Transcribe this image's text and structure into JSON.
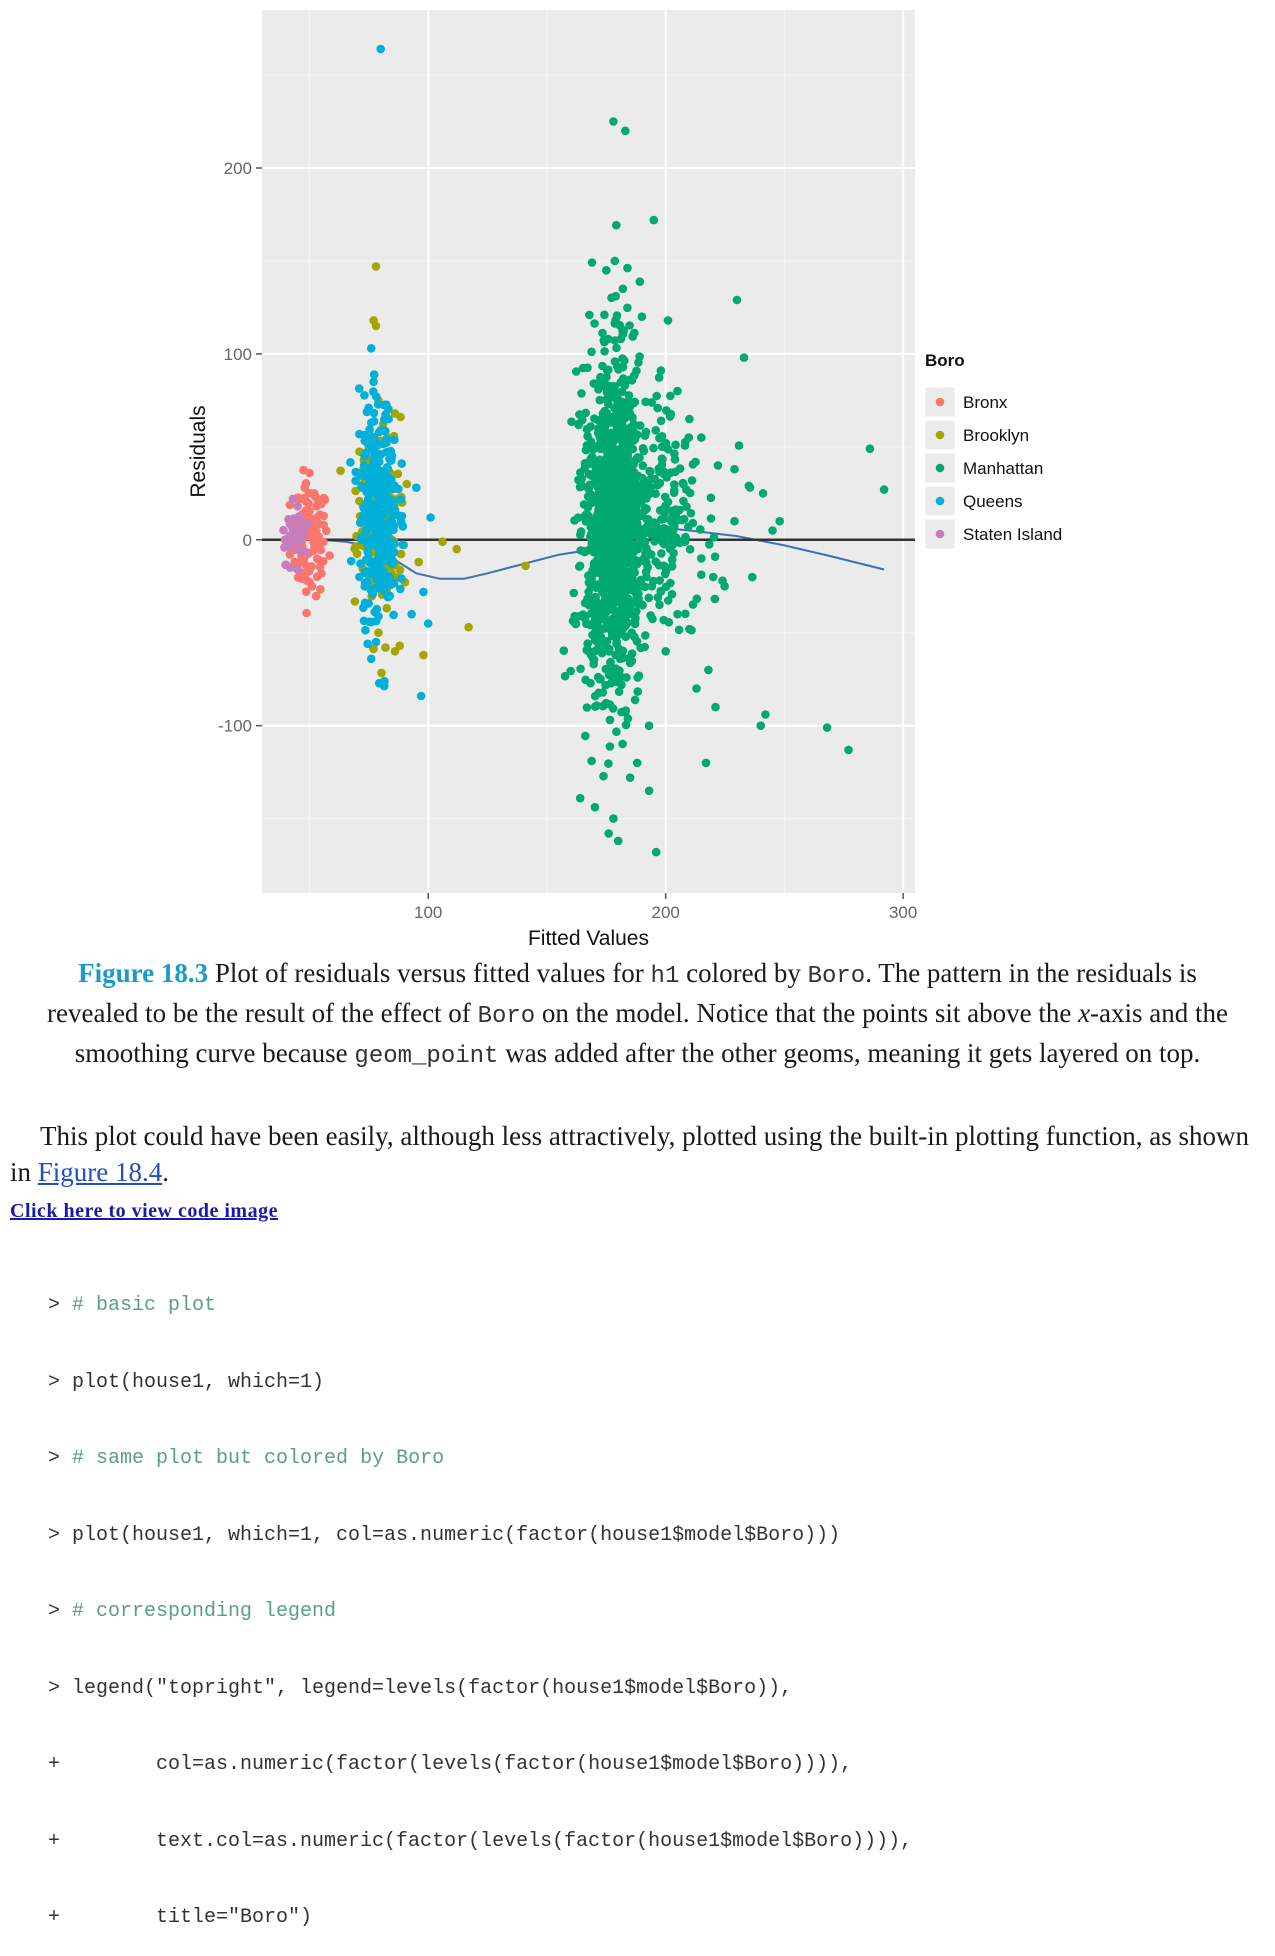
{
  "chart_data": {
    "type": "scatter",
    "xlabel": "Fitted Values",
    "ylabel": "Residuals",
    "xlim": [
      30,
      305
    ],
    "ylim": [
      -190,
      285
    ],
    "xticks": [
      100,
      200,
      300
    ],
    "yticks": [
      -100,
      0,
      100,
      200
    ],
    "xtick_labels": [
      "100",
      "200",
      "300"
    ],
    "ytick_labels": [
      "-100",
      "0",
      "100",
      "200"
    ],
    "grid": true,
    "background": "#ebebeb",
    "legend": {
      "title": "Boro",
      "placement": "right",
      "entries": [
        "Bronx",
        "Brooklyn",
        "Manhattan",
        "Queens",
        "Staten Island"
      ]
    },
    "colors": {
      "Bronx": "#f8766d",
      "Brooklyn": "#a3a500",
      "Manhattan": "#00a96f",
      "Queens": "#00b0d8",
      "Staten Island": "#c77cbb",
      "smooth": "#3f6fb5",
      "hline": "#333333"
    },
    "hline_y": 0,
    "smooth": {
      "x": [
        40,
        55,
        65,
        75,
        85,
        95,
        105,
        115,
        125,
        140,
        155,
        170,
        180,
        195,
        210,
        230,
        250,
        270,
        292
      ],
      "y": [
        2,
        0,
        -1,
        -3,
        -10,
        -18,
        -21,
        -21,
        -18,
        -13,
        -8,
        -5,
        0,
        7,
        5,
        2,
        -3,
        -9,
        -16
      ]
    },
    "series": [
      {
        "name": "Bronx",
        "center": [
          50,
          0
        ],
        "spread": [
          4,
          15
        ],
        "n": 90,
        "points": [
          [
            50,
            36
          ],
          [
            48,
            28
          ],
          [
            52,
            25
          ],
          [
            53,
            18
          ],
          [
            46,
            22
          ],
          [
            51,
            -25
          ],
          [
            55,
            -18
          ],
          [
            49,
            -22
          ],
          [
            56,
            8
          ],
          [
            44,
            -15
          ],
          [
            53,
            12
          ]
        ]
      },
      {
        "name": "Brooklyn",
        "center": [
          80,
          5
        ],
        "spread": [
          5,
          35
        ],
        "n": 140,
        "points": [
          [
            78,
            147
          ],
          [
            77,
            118
          ],
          [
            78,
            115
          ],
          [
            79,
            75
          ],
          [
            86,
            68
          ],
          [
            81,
            62
          ],
          [
            84,
            36
          ],
          [
            91,
            30
          ],
          [
            96,
            -12
          ],
          [
            106,
            -1
          ],
          [
            112,
            -5
          ],
          [
            117,
            -47
          ],
          [
            141,
            -14
          ],
          [
            86,
            -60
          ],
          [
            82,
            -58
          ],
          [
            88,
            -57
          ],
          [
            79,
            -50
          ],
          [
            98,
            -62
          ],
          [
            72,
            28
          ],
          [
            75,
            50
          ],
          [
            89,
            20
          ]
        ]
      },
      {
        "name": "Manhattan",
        "center": [
          177,
          8
        ],
        "spread": [
          6,
          45
        ],
        "n": 1400,
        "points": [
          [
            178,
            225
          ],
          [
            183,
            220
          ],
          [
            195,
            172
          ],
          [
            175,
            145
          ],
          [
            182,
            135
          ],
          [
            190,
            120
          ],
          [
            201,
            118
          ],
          [
            230,
            129
          ],
          [
            233,
            98
          ],
          [
            198,
            91
          ],
          [
            205,
            80
          ],
          [
            210,
            65
          ],
          [
            215,
            55
          ],
          [
            222,
            40
          ],
          [
            229,
            38
          ],
          [
            235,
            29
          ],
          [
            241,
            25
          ],
          [
            248,
            10
          ],
          [
            245,
            5
          ],
          [
            229,
            10
          ],
          [
            286,
            49
          ],
          [
            292,
            27
          ],
          [
            268,
            -101
          ],
          [
            277,
            -113
          ],
          [
            242,
            -94
          ],
          [
            240,
            -100
          ],
          [
            218,
            -70
          ],
          [
            213,
            -80
          ],
          [
            221,
            -90
          ],
          [
            217,
            -120
          ],
          [
            196,
            -168
          ],
          [
            176,
            -158
          ],
          [
            180,
            -162
          ],
          [
            178,
            -150
          ],
          [
            164,
            -139
          ],
          [
            188,
            -120
          ],
          [
            193,
            -100
          ],
          [
            210,
            -48
          ],
          [
            200,
            -60
          ],
          [
            205,
            -40
          ],
          [
            220,
            -20
          ],
          [
            215,
            -10
          ],
          [
            193,
            -135
          ],
          [
            185,
            -128
          ]
        ]
      },
      {
        "name": "Queens",
        "center": [
          79,
          15
        ],
        "spread": [
          4,
          30
        ],
        "n": 320,
        "points": [
          [
            80,
            264
          ],
          [
            76,
            103
          ],
          [
            77,
            85
          ],
          [
            73,
            40
          ],
          [
            95,
            28
          ],
          [
            101,
            12
          ],
          [
            98,
            -28
          ],
          [
            100,
            -45
          ],
          [
            97,
            -84
          ],
          [
            76,
            -64
          ],
          [
            78,
            -55
          ],
          [
            93,
            -40
          ],
          [
            71,
            -20
          ]
        ]
      },
      {
        "name": "Staten Island",
        "center": [
          44,
          3
        ],
        "spread": [
          3,
          7
        ],
        "n": 35,
        "points": [
          [
            43,
            22
          ],
          [
            45,
            18
          ],
          [
            42,
            10
          ],
          [
            47,
            5
          ],
          [
            46,
            -6
          ]
        ]
      }
    ]
  },
  "caption": {
    "label": "Figure 18.3",
    "t1": " Plot of residuals versus fitted values for ",
    "code1": "h1",
    "t2": " colored by ",
    "code2": "Boro",
    "t3": ". The pattern in the residuals is revealed to be the result of the effect of ",
    "code3": "Boro",
    "t4": " on the model. Notice that the points sit above the ",
    "em": "x",
    "t5": "-axis and the smoothing curve because ",
    "code4": "geom_point",
    "t6": " was added after the other geoms, meaning it gets layered on top."
  },
  "paragraph": {
    "t1": "This plot could have been easily, although less attractively, plotted using the built-in plotting function, as shown in ",
    "link": "Figure 18.4",
    "t2": "."
  },
  "code_link": "Click here to view code image",
  "code": [
    {
      "a": "> ",
      "cm": "# basic plot",
      "b": ""
    },
    {
      "a": "> plot(house1, which=1)",
      "cm": "",
      "b": ""
    },
    {
      "a": "> ",
      "cm": "# same plot but colored by Boro",
      "b": ""
    },
    {
      "a": "> plot(house1, which=1, col=as.numeric(factor(house1$model$Boro)))",
      "cm": "",
      "b": ""
    },
    {
      "a": "> ",
      "cm": "# corresponding legend",
      "b": ""
    },
    {
      "a": "> legend(\"topright\", legend=levels(factor(house1$model$Boro)),",
      "cm": "",
      "b": ""
    },
    {
      "a": "+        col=as.numeric(factor(levels(factor(house1$model$Boro)))),",
      "cm": "",
      "b": ""
    },
    {
      "a": "+        text.col=as.numeric(factor(levels(factor(house1$model$Boro)))),",
      "cm": "",
      "b": ""
    },
    {
      "a": "+        title=\"Boro\")",
      "cm": "",
      "b": ""
    }
  ]
}
